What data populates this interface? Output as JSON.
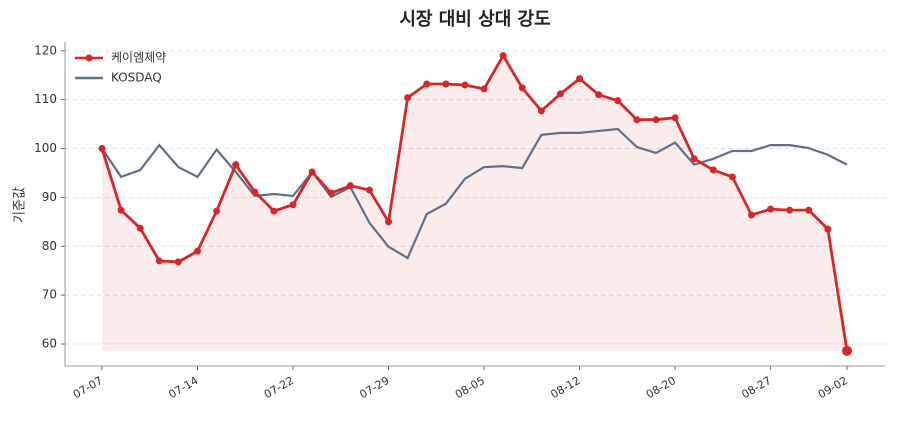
{
  "chart_data": {
    "type": "line",
    "title": "시장 대비 상대 강도",
    "y_label": "기준값",
    "categories": [
      "07-07",
      null,
      null,
      null,
      null,
      "07-14",
      null,
      null,
      null,
      null,
      "07-22",
      null,
      null,
      null,
      null,
      "07-29",
      null,
      null,
      null,
      null,
      "08-05",
      null,
      null,
      null,
      null,
      "08-12",
      null,
      null,
      null,
      null,
      "08-20",
      null,
      null,
      null,
      null,
      "08-27",
      null,
      null,
      null,
      "09-02"
    ],
    "series": [
      {
        "name": "케이엠제약",
        "color": "#d62728",
        "values": [
          100,
          87.4,
          83.7,
          77.0,
          76.8,
          79.0,
          87.2,
          96.7,
          91.1,
          87.2,
          88.5,
          95.2,
          90.9,
          92.4,
          91.5,
          85.0,
          110.4,
          113.2,
          113.2,
          113.0,
          112.2,
          119.0,
          112.4,
          107.7,
          111.2,
          114.3,
          111.0,
          109.8,
          105.9,
          105.9,
          106.3,
          97.9,
          95.6,
          94.2,
          86.4,
          87.6,
          87.4,
          87.4,
          83.5,
          58.6
        ]
      },
      {
        "name": "KOSDAQ",
        "color": "#5f6f88",
        "values": [
          100,
          94.2,
          95.6,
          100.7,
          96.2,
          94.2,
          99.8,
          95.2,
          90.3,
          90.7,
          90.3,
          95.2,
          90.1,
          92.1,
          84.8,
          79.9,
          77.6,
          86.6,
          88.7,
          93.8,
          96.2,
          96.4,
          96.0,
          102.8,
          103.2,
          103.2,
          103.6,
          104.0,
          100.3,
          99.1,
          101.2,
          96.7,
          97.9,
          99.5,
          99.5,
          100.7,
          100.7,
          100.1,
          98.7,
          96.7
        ]
      }
    ],
    "ylim": [
      55.5,
      121.8
    ],
    "yticks": [
      60,
      70,
      80,
      90,
      100,
      110,
      120
    ],
    "grid": true,
    "legend": "upper-left"
  }
}
